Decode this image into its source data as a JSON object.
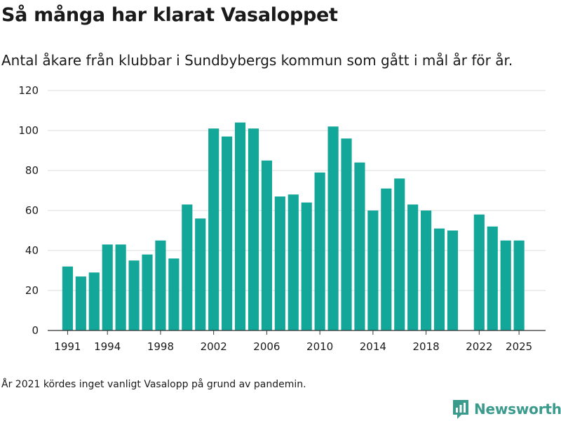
{
  "title": "Så många har klarat Vasaloppet",
  "subtitle": "Antal åkare från klubbar i Sundbybergs kommun som gått i mål år för år.",
  "note": "År 2021 kördes inget vanligt Vasalopp på grund av pandemin.",
  "brand": {
    "name": "Newsworthy",
    "icon": "newsworthy-logo-icon",
    "color": "#3a9a8c"
  },
  "chart_data": {
    "type": "bar",
    "title": "Så många har klarat Vasaloppet",
    "xlabel": "",
    "ylabel": "",
    "bar_color": "#13a79a",
    "grid": true,
    "ylim": [
      0,
      120
    ],
    "yticks": [
      0,
      20,
      40,
      60,
      80,
      100,
      120
    ],
    "xlim": [
      1989.5,
      2027
    ],
    "xticks": [
      1991,
      1994,
      1998,
      2002,
      2006,
      2010,
      2014,
      2018,
      2022,
      2025
    ],
    "x": [
      1991,
      1992,
      1993,
      1994,
      1995,
      1996,
      1997,
      1998,
      1999,
      2000,
      2001,
      2002,
      2003,
      2004,
      2005,
      2006,
      2007,
      2008,
      2009,
      2010,
      2011,
      2012,
      2013,
      2014,
      2015,
      2016,
      2017,
      2018,
      2019,
      2020,
      2022,
      2023,
      2024,
      2025
    ],
    "values": [
      32,
      27,
      29,
      43,
      43,
      35,
      38,
      45,
      36,
      63,
      56,
      101,
      97,
      104,
      101,
      85,
      67,
      68,
      64,
      79,
      102,
      96,
      84,
      60,
      71,
      76,
      63,
      60,
      51,
      50,
      58,
      52,
      45,
      45
    ]
  }
}
